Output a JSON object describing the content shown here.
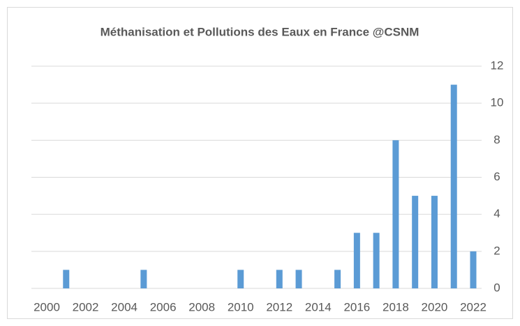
{
  "chart_data": {
    "type": "bar",
    "title": "Méthanisation et Pollutions des Eaux en France @CSNM",
    "x": [
      2001,
      2005,
      2010,
      2012,
      2013,
      2015,
      2016,
      2017,
      2018,
      2019,
      2020,
      2021,
      2022
    ],
    "values": [
      1,
      1,
      1,
      1,
      1,
      1,
      3,
      3,
      8,
      5,
      5,
      11,
      2
    ],
    "color": "#5b9bd5",
    "xlim": [
      2000,
      2022
    ],
    "xticks": [
      2000,
      2002,
      2004,
      2006,
      2008,
      2010,
      2012,
      2014,
      2016,
      2018,
      2020,
      2022
    ],
    "ylim": [
      0,
      12
    ],
    "yticks": [
      0,
      2,
      4,
      6,
      8,
      10,
      12
    ],
    "grid": true
  }
}
